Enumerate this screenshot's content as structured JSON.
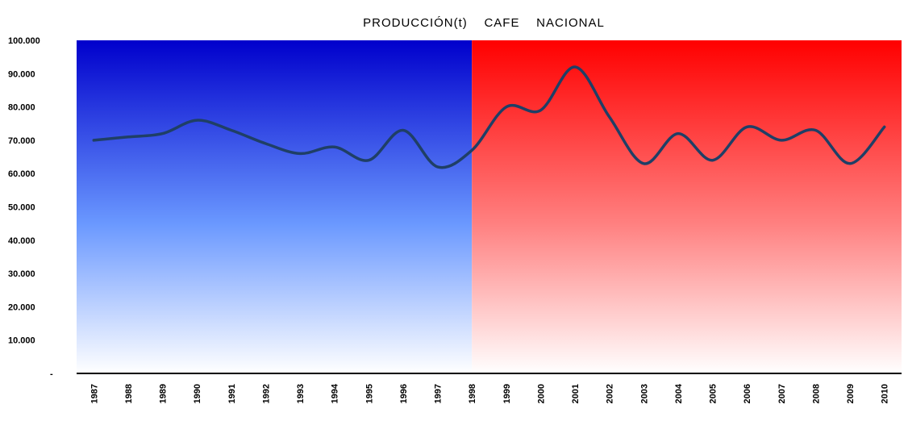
{
  "chart_data": {
    "type": "line",
    "title": "PRODUCCIÓN(t)    CAFE    NACIONAL",
    "xlabel": "",
    "ylabel": "",
    "ylim": [
      0,
      100000
    ],
    "grid": false,
    "legend": "none",
    "background": {
      "split_after": "1998",
      "left_color_top": "#0000cc",
      "left_color_bottom": "#ffffff",
      "right_color_top": "#ff0000",
      "right_color_bottom": "#ffffff"
    },
    "line_color": "#1f3f66",
    "y_tick_labels": [
      "-",
      "10.000",
      "20.000",
      "30.000",
      "40.000",
      "50.000",
      "60.000",
      "70.000",
      "80.000",
      "90.000",
      "100.000"
    ],
    "categories": [
      "1987",
      "1988",
      "1989",
      "1990",
      "1991",
      "1992",
      "1993",
      "1994",
      "1995",
      "1996",
      "1997",
      "1998",
      "1999",
      "2000",
      "2001",
      "2002",
      "2003",
      "2004",
      "2005",
      "2006",
      "2007",
      "2008",
      "2009",
      "2010"
    ],
    "series": [
      {
        "values": [
          70000,
          71000,
          72000,
          76000,
          73000,
          69000,
          66000,
          68000,
          64000,
          73000,
          62000,
          67000,
          80000,
          79000,
          92000,
          77000,
          63000,
          72000,
          64000,
          74000,
          70000,
          73000,
          63000,
          74000
        ]
      }
    ]
  }
}
